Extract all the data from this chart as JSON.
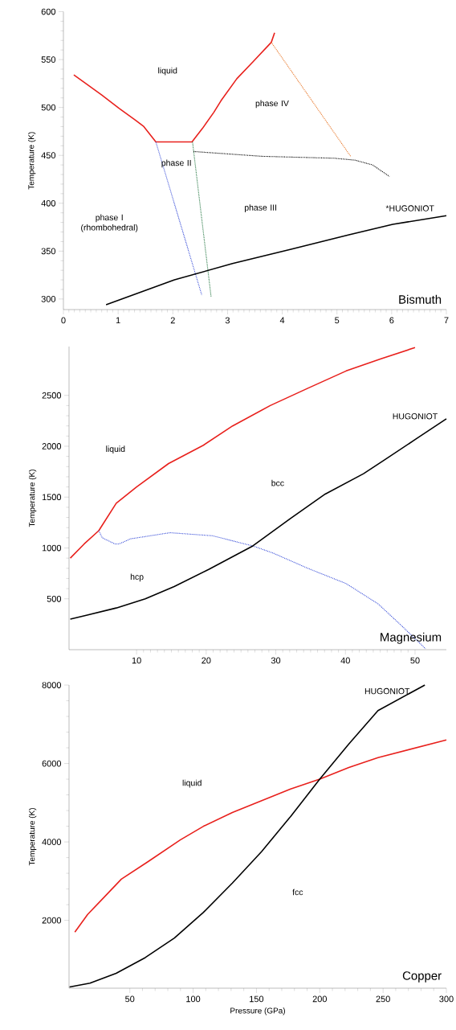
{
  "chart_data": [
    {
      "type": "line",
      "title": "Bismuth",
      "ylabel": "Temperature (K)",
      "xlim": [
        0,
        7
      ],
      "ylim": [
        289,
        600
      ],
      "xticks": [
        0,
        1,
        2,
        3,
        4,
        5,
        6,
        7
      ],
      "yticks": [
        300,
        350,
        400,
        450,
        500,
        550,
        600
      ],
      "series": [
        {
          "color": "#e8201c",
          "line_style": "solid",
          "x": [
            0.19,
            0.41,
            0.7,
            1.02,
            1.31,
            1.47,
            1.69,
            2.35,
            2.54,
            2.75,
            2.88,
            3.17,
            3.47,
            3.8,
            3.86
          ],
          "values": [
            534,
            525,
            513,
            499,
            487,
            480,
            464,
            464,
            478,
            495,
            507,
            530,
            548,
            568,
            578
          ]
        },
        {
          "color": "#3a4fd8",
          "line_style": "dotted",
          "x": [
            1.69,
            2.53
          ],
          "values": [
            464,
            304
          ]
        },
        {
          "color": "#2e7d4a",
          "line_style": "dotted",
          "x": [
            2.36,
            2.7
          ],
          "values": [
            464,
            302
          ]
        },
        {
          "color": "#e8782a",
          "line_style": "dotted",
          "x": [
            3.8,
            5.25
          ],
          "values": [
            568,
            449
          ]
        },
        {
          "color": "#000000",
          "line_style": "dotted",
          "x": [
            2.38,
            3.63,
            4.95,
            5.33,
            5.65,
            5.96
          ],
          "values": [
            454,
            449,
            447,
            445,
            440,
            428
          ]
        },
        {
          "color": "#000000",
          "line_style": "solid",
          "x": [
            0.78,
            2.03,
            3.09,
            4.16,
            5.22,
            6.02,
            7.0
          ],
          "values": [
            294,
            320,
            337,
            352,
            367,
            378,
            387
          ]
        }
      ],
      "annotations": [
        "liquid",
        "phase IV",
        "phase II",
        "phase I\n(rhombohedral)",
        "phase III",
        "*HUGONIOT"
      ]
    },
    {
      "type": "line",
      "title": "Magnesium",
      "ylabel": "Temperature (K)",
      "xlim": [
        0.3,
        54.5
      ],
      "ylim": [
        0,
        2980
      ],
      "xticks": [
        10,
        20,
        30,
        40,
        50
      ],
      "yticks": [
        500,
        1000,
        1500,
        2000,
        2500
      ],
      "series": [
        {
          "color": "#e8201c",
          "line_style": "solid",
          "x": [
            0.48,
            2.48,
            4.57,
            7.08,
            10,
            14.6,
            19.6,
            23.8,
            29.2,
            34.6,
            40.1,
            45.1,
            50
          ],
          "values": [
            900,
            1040,
            1170,
            1440,
            1600,
            1830,
            2010,
            2200,
            2400,
            2570,
            2740,
            2860,
            2970
          ]
        },
        {
          "color": "#3a4fd8",
          "line_style": "dotted",
          "x": [
            4.57,
            5.07,
            6.87,
            7.49,
            9.16,
            14.8,
            20.9,
            23.8,
            26.7,
            29.6,
            34.6,
            40.1,
            44.7,
            48.0,
            51.5
          ],
          "values": [
            1170,
            1100,
            1040,
            1040,
            1090,
            1150,
            1120,
            1070,
            1020,
            950,
            800,
            650,
            450,
            240,
            10
          ]
        },
        {
          "color": "#000000",
          "line_style": "solid",
          "x": [
            0.48,
            2.9,
            7.08,
            11.25,
            15.4,
            20.4,
            26.7,
            32.1,
            37.1,
            42.6,
            45.5,
            50.1,
            54.5
          ],
          "values": [
            300,
            340,
            410,
            500,
            620,
            790,
            1020,
            1290,
            1530,
            1730,
            1860,
            2070,
            2270
          ]
        }
      ],
      "annotations": [
        "liquid",
        "bcc",
        "hcp",
        "HUGONIOT"
      ]
    },
    {
      "type": "line",
      "title": "Copper",
      "xlabel": "Pressure (GPa)",
      "ylabel": "Temperature (K)",
      "xlim": [
        2,
        300
      ],
      "ylim": [
        270,
        8000
      ],
      "xticks": [
        50,
        100,
        150,
        200,
        250,
        300
      ],
      "yticks": [
        2000,
        4000,
        6000,
        8000
      ],
      "series": [
        {
          "color": "#e8201c",
          "line_style": "solid",
          "x": [
            6.6,
            16.7,
            30,
            43.3,
            64.5,
            89.8,
            108.2,
            131,
            177,
            200,
            223,
            246,
            300
          ],
          "values": [
            1700,
            2150,
            2600,
            3050,
            3500,
            4050,
            4400,
            4750,
            5350,
            5600,
            5900,
            6150,
            6600
          ]
        },
        {
          "color": "#000000",
          "line_style": "solid",
          "x": [
            2.4,
            18.5,
            39.2,
            62.2,
            85.2,
            108,
            131,
            154,
            177,
            200,
            223,
            246,
            283
          ],
          "values": [
            300,
            400,
            650,
            1050,
            1550,
            2200,
            2950,
            3750,
            4650,
            5600,
            6500,
            7350,
            8000
          ]
        }
      ],
      "annotations": [
        "liquid",
        "fcc",
        "HUGONIOT"
      ]
    }
  ]
}
